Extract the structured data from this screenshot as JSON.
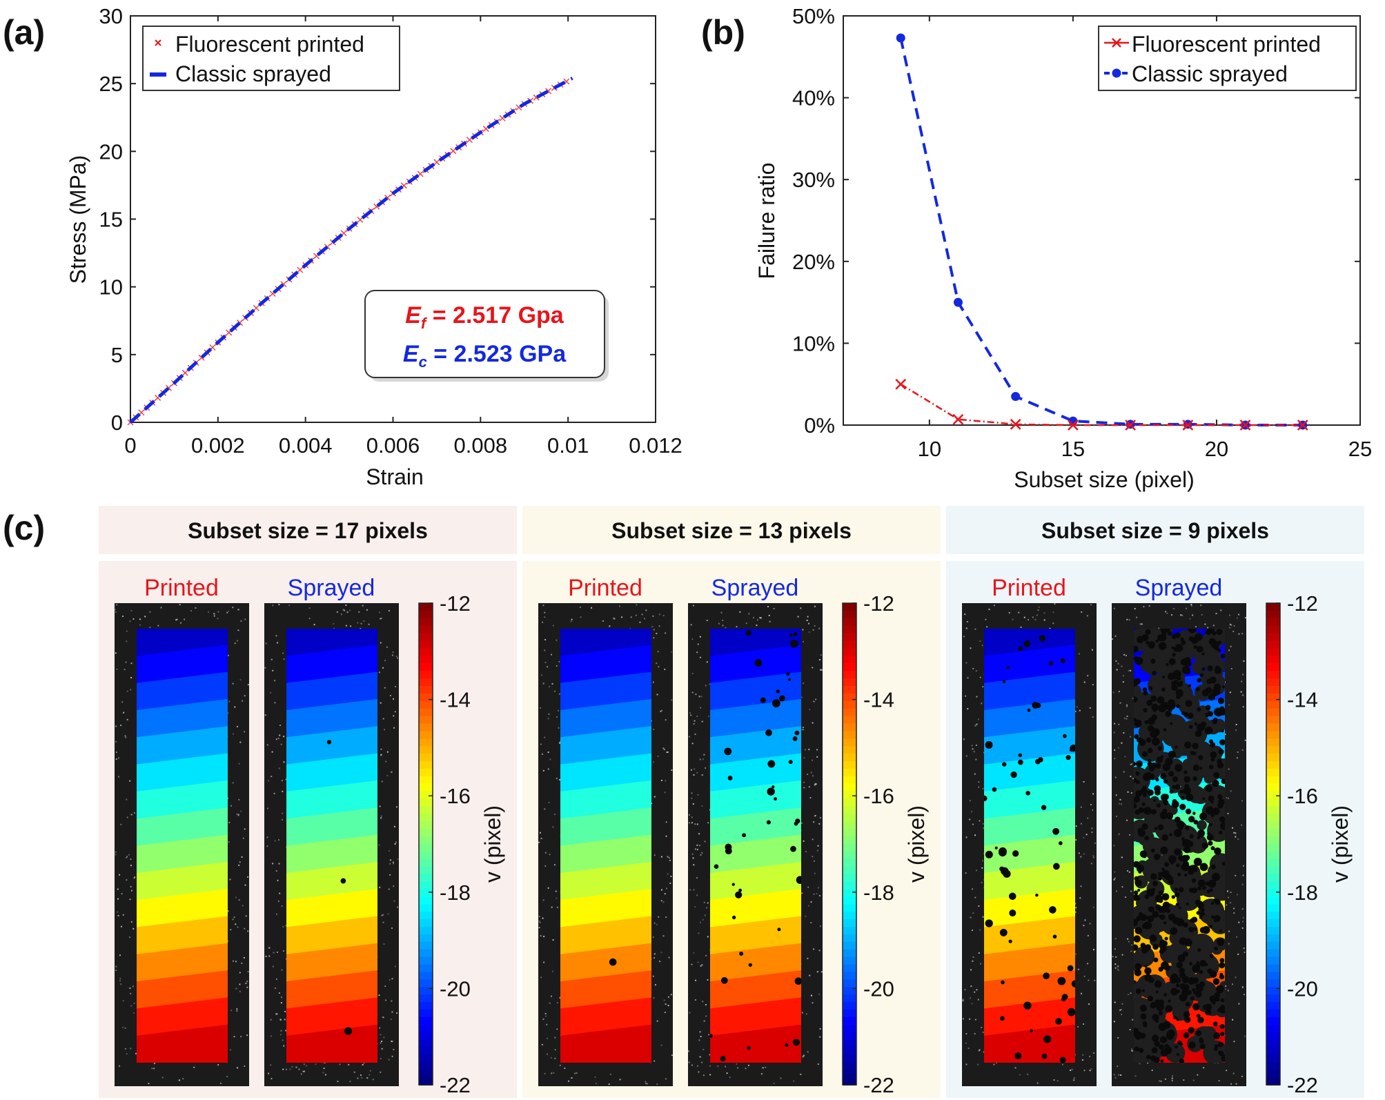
{
  "panels": {
    "a": "(a)",
    "b": "(b)",
    "c": "(c)"
  },
  "colors": {
    "printed": "#e8141b",
    "sprayed": "#1428e0",
    "col1_bg": "#f9efec",
    "col2_bg": "#fcf8ea",
    "col3_bg": "#eef6f9"
  },
  "chart_data": [
    {
      "type": "line",
      "panel": "(a)",
      "xlabel": "Strain",
      "ylabel": "Stress (MPa)",
      "xlim": [
        0,
        0.012
      ],
      "ylim": [
        0,
        30
      ],
      "xticks": [
        "0",
        "0.002",
        "0.004",
        "0.006",
        "0.008",
        "0.01",
        "0.012"
      ],
      "yticks": [
        "0",
        "5",
        "10",
        "15",
        "20",
        "25",
        "30"
      ],
      "grid": false,
      "legend_position": "top-left",
      "x": [
        0,
        0.001,
        0.002,
        0.003,
        0.004,
        0.005,
        0.006,
        0.007,
        0.008,
        0.009,
        0.0101
      ],
      "series": [
        {
          "name": "Fluorescent printed",
          "marker": "x",
          "color": "#e8141b",
          "values": [
            0,
            2.9,
            5.9,
            8.8,
            11.6,
            14.3,
            16.9,
            19.2,
            21.4,
            23.5,
            25.4
          ]
        },
        {
          "name": "Classic sprayed",
          "line": "dashed",
          "color": "#1428e0",
          "values": [
            0,
            2.9,
            5.9,
            8.8,
            11.6,
            14.3,
            16.9,
            19.2,
            21.4,
            23.5,
            25.4
          ]
        }
      ],
      "annotation": {
        "ef_symbol": "E",
        "ef_sub": "f",
        "ef_value": " = 2.517 Gpa",
        "ec_symbol": "E",
        "ec_sub": "c",
        "ec_value": " = 2.523 GPa"
      }
    },
    {
      "type": "line",
      "panel": "(b)",
      "xlabel": "Subset size (pixel)",
      "ylabel": "Failure ratio",
      "xlim": [
        7,
        25
      ],
      "ylim": [
        0,
        50
      ],
      "xticks": [
        "10",
        "15",
        "20",
        "25"
      ],
      "yticks": [
        "0%",
        "10%",
        "20%",
        "30%",
        "40%",
        "50%"
      ],
      "grid": false,
      "legend_position": "top-right",
      "x": [
        9,
        11,
        13,
        15,
        17,
        19,
        21,
        23
      ],
      "series": [
        {
          "name": "Fluorescent printed",
          "marker": "x",
          "line": "dash-dot",
          "color": "#e8141b",
          "values": [
            5.0,
            0.7,
            0.1,
            0,
            0,
            0,
            0,
            0
          ]
        },
        {
          "name": "Classic sprayed",
          "marker": "dot",
          "line": "dashed",
          "color": "#1428e0",
          "values": [
            47.3,
            15.0,
            3.5,
            0.5,
            0.1,
            0.1,
            0,
            0
          ]
        }
      ]
    },
    {
      "type": "heatmap",
      "panel": "(c)",
      "colormap": "jet",
      "colorbar_label": "v (pixel)",
      "colorbar_range": [
        -22,
        -12
      ],
      "colorbar_ticks": [
        "-12",
        "-14",
        "-16",
        "-18",
        "-20",
        "-22"
      ],
      "columns": [
        {
          "title": "Subset size = 17 pixels",
          "subset": 17
        },
        {
          "title": "Subset size = 13 pixels",
          "subset": 13
        },
        {
          "title": "Subset size = 9 pixels",
          "subset": 9
        }
      ],
      "image_labels": {
        "printed": "Printed",
        "sprayed": "Sprayed"
      }
    }
  ]
}
